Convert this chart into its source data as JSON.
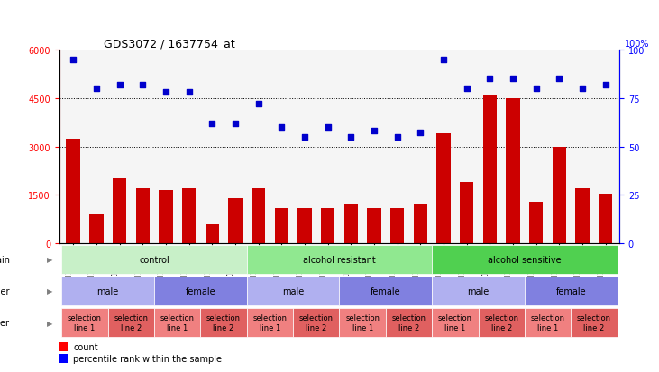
{
  "title": "GDS3072 / 1637754_at",
  "samples": [
    "GSM183815",
    "GSM183816",
    "GSM183990",
    "GSM183991",
    "GSM183817",
    "GSM183856",
    "GSM183992",
    "GSM183993",
    "GSM183887",
    "GSM183888",
    "GSM184121",
    "GSM184122",
    "GSM183936",
    "GSM183989",
    "GSM184123",
    "GSM184124",
    "GSM183857",
    "GSM183858",
    "GSM183994",
    "GSM184118",
    "GSM183875",
    "GSM183886",
    "GSM184119",
    "GSM184120"
  ],
  "counts": [
    3250,
    900,
    2000,
    1700,
    1650,
    1700,
    600,
    1400,
    1700,
    1100,
    1100,
    1100,
    1200,
    1100,
    1100,
    1200,
    3400,
    1900,
    4600,
    4500,
    1300,
    3000,
    1700,
    1550
  ],
  "percentiles": [
    95,
    80,
    82,
    82,
    78,
    78,
    62,
    62,
    72,
    60,
    55,
    60,
    55,
    58,
    55,
    57,
    95,
    80,
    85,
    85,
    80,
    85,
    80,
    82
  ],
  "strain_groups": [
    {
      "label": "control",
      "start": 0,
      "end": 8,
      "color": "#c8f0c8"
    },
    {
      "label": "alcohol resistant",
      "start": 8,
      "end": 16,
      "color": "#90e890"
    },
    {
      "label": "alcohol sensitive",
      "start": 16,
      "end": 24,
      "color": "#50d050"
    }
  ],
  "gender_groups": [
    {
      "label": "male",
      "start": 0,
      "end": 4,
      "color": "#b0b0f0"
    },
    {
      "label": "female",
      "start": 4,
      "end": 8,
      "color": "#8080e0"
    },
    {
      "label": "male",
      "start": 8,
      "end": 12,
      "color": "#b0b0f0"
    },
    {
      "label": "female",
      "start": 12,
      "end": 16,
      "color": "#8080e0"
    },
    {
      "label": "male",
      "start": 16,
      "end": 20,
      "color": "#b0b0f0"
    },
    {
      "label": "female",
      "start": 20,
      "end": 24,
      "color": "#8080e0"
    }
  ],
  "other_groups": [
    {
      "label": "selection\nline 1",
      "start": 0,
      "end": 2,
      "color": "#f08080"
    },
    {
      "label": "selection\nline 2",
      "start": 2,
      "end": 4,
      "color": "#e06060"
    },
    {
      "label": "selection\nline 1",
      "start": 4,
      "end": 6,
      "color": "#f08080"
    },
    {
      "label": "selection\nline 2",
      "start": 6,
      "end": 8,
      "color": "#e06060"
    },
    {
      "label": "selection\nline 1",
      "start": 8,
      "end": 10,
      "color": "#f08080"
    },
    {
      "label": "selection\nline 2",
      "start": 10,
      "end": 12,
      "color": "#e06060"
    },
    {
      "label": "selection\nline 1",
      "start": 12,
      "end": 14,
      "color": "#f08080"
    },
    {
      "label": "selection\nline 2",
      "start": 14,
      "end": 16,
      "color": "#e06060"
    },
    {
      "label": "selection\nline 1",
      "start": 16,
      "end": 18,
      "color": "#f08080"
    },
    {
      "label": "selection\nline 2",
      "start": 18,
      "end": 20,
      "color": "#e06060"
    },
    {
      "label": "selection\nline 1",
      "start": 20,
      "end": 22,
      "color": "#f08080"
    },
    {
      "label": "selection\nline 2",
      "start": 22,
      "end": 24,
      "color": "#e06060"
    }
  ],
  "bar_color": "#cc0000",
  "dot_color": "#0000cc",
  "ylim_left": [
    0,
    6000
  ],
  "ylim_right": [
    0,
    100
  ],
  "yticks_left": [
    0,
    1500,
    3000,
    4500,
    6000
  ],
  "yticks_right": [
    0,
    25,
    50,
    75,
    100
  ],
  "grid_lines": [
    1500,
    3000,
    4500
  ],
  "bg_color": "#f5f5f5"
}
